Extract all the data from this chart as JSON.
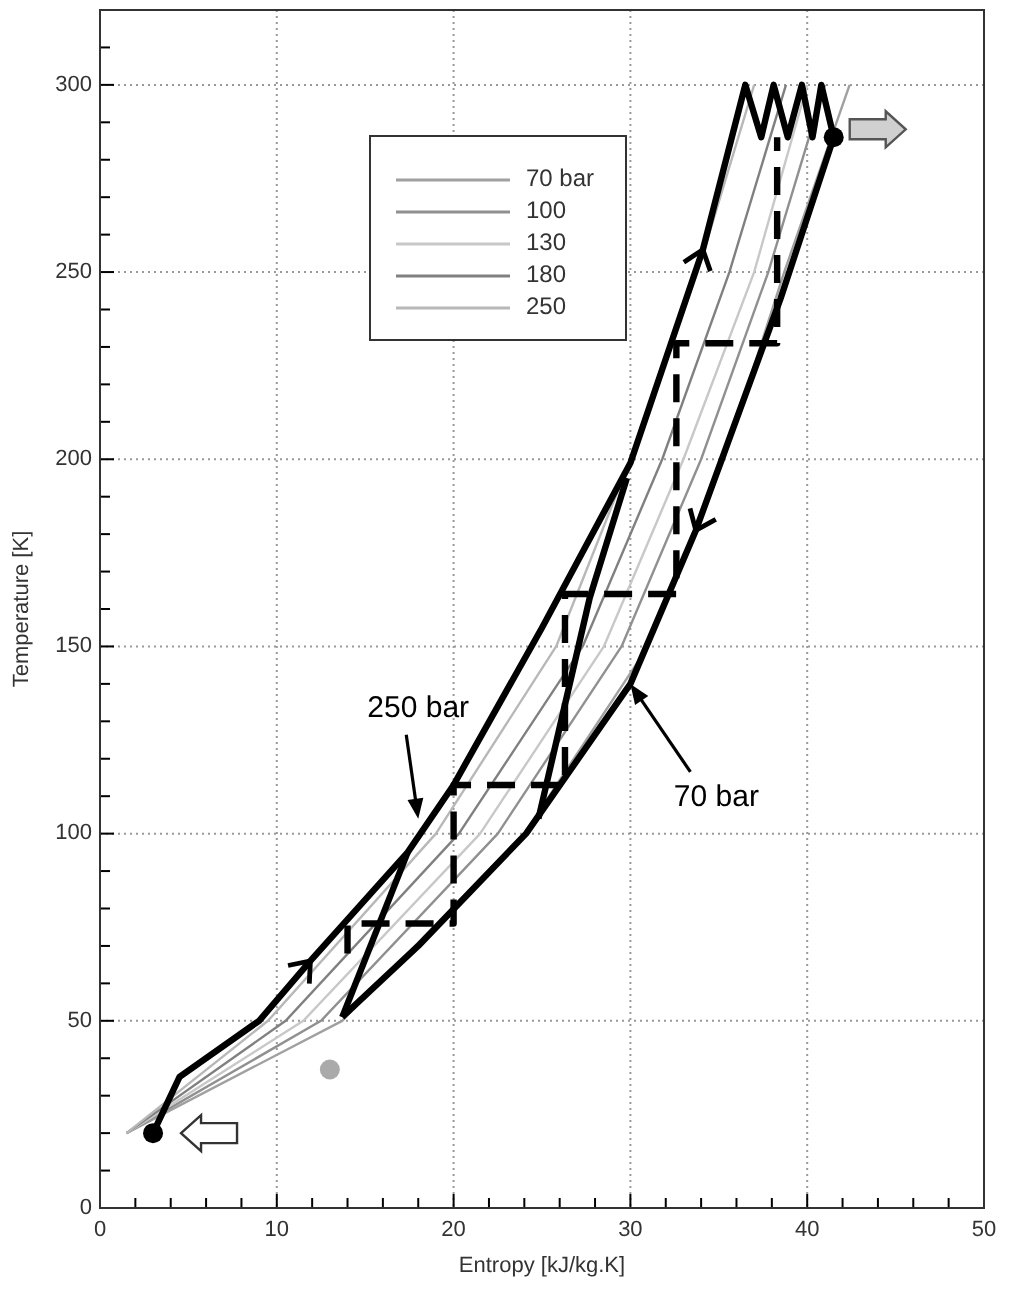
{
  "chart_data": {
    "type": "line",
    "xlabel": "Entropy [kJ/kg.K]",
    "ylabel": "Temperature [K]",
    "xlim": [
      0,
      50
    ],
    "ylim": [
      0,
      320
    ],
    "xticks": [
      0,
      {
        "value": 2,
        "label": null
      },
      {
        "value": 4,
        "label": null
      },
      {
        "value": 6,
        "label": null
      },
      {
        "value": 8,
        "label": null
      },
      10,
      {
        "value": 12,
        "label": null
      },
      {
        "value": 14,
        "label": null
      },
      {
        "value": 16,
        "label": null
      },
      {
        "value": 18,
        "label": null
      },
      20,
      {
        "value": 22,
        "label": null
      },
      {
        "value": 24,
        "label": null
      },
      {
        "value": 26,
        "label": null
      },
      {
        "value": 28,
        "label": null
      },
      30,
      {
        "value": 32,
        "label": null
      },
      {
        "value": 34,
        "label": null
      },
      {
        "value": 36,
        "label": null
      },
      {
        "value": 38,
        "label": null
      },
      40,
      {
        "value": 42,
        "label": null
      },
      {
        "value": 44,
        "label": null
      },
      {
        "value": 46,
        "label": null
      },
      {
        "value": 48,
        "label": null
      },
      50
    ],
    "yticks": [
      0,
      {
        "value": 10,
        "label": null
      },
      {
        "value": 20,
        "label": null
      },
      {
        "value": 30,
        "label": null
      },
      {
        "value": 40,
        "label": null
      },
      50,
      {
        "value": 60,
        "label": null
      },
      {
        "value": 70,
        "label": null
      },
      {
        "value": 80,
        "label": null
      },
      {
        "value": 90,
        "label": null
      },
      100,
      {
        "value": 110,
        "label": null
      },
      {
        "value": 120,
        "label": null
      },
      {
        "value": 130,
        "label": null
      },
      {
        "value": 140,
        "label": null
      },
      150,
      {
        "value": 160,
        "label": null
      },
      {
        "value": 170,
        "label": null
      },
      {
        "value": 180,
        "label": null
      },
      {
        "value": 190,
        "label": null
      },
      200,
      {
        "value": 210,
        "label": null
      },
      {
        "value": 220,
        "label": null
      },
      {
        "value": 230,
        "label": null
      },
      {
        "value": 240,
        "label": null
      },
      250,
      {
        "value": 260,
        "label": null
      },
      {
        "value": 270,
        "label": null
      },
      {
        "value": 280,
        "label": null
      },
      {
        "value": 290,
        "label": null
      },
      300,
      {
        "value": 310,
        "label": null
      },
      {
        "value": 320,
        "label": null
      }
    ],
    "grid": true,
    "legend": "top",
    "series": [
      {
        "name": "70 bar",
        "color": "#a0a0a0",
        "x": [
          1.5,
          13.7,
          24,
          31,
          35.3,
          38.7,
          42.4
        ],
        "values": [
          20,
          50,
          100,
          150,
          200,
          250,
          300
        ]
      },
      {
        "name": "100",
        "color": "#909090",
        "x": [
          1.5,
          12.5,
          22.5,
          29.5,
          34,
          37.8,
          41
        ],
        "values": [
          20,
          50,
          100,
          150,
          200,
          250,
          300
        ]
      },
      {
        "name": "130",
        "color": "#c8c8c8",
        "x": [
          1.5,
          11.5,
          21.5,
          28.5,
          33,
          37,
          40
        ],
        "values": [
          20,
          50,
          100,
          150,
          200,
          250,
          300
        ]
      },
      {
        "name": "180",
        "color": "#808080",
        "x": [
          1.5,
          10.5,
          20.3,
          27.3,
          31.8,
          35.6,
          38.8
        ],
        "values": [
          20,
          50,
          100,
          150,
          200,
          250,
          300
        ]
      },
      {
        "name": "250",
        "color": "#b8b8b8",
        "x": [
          1.5,
          9.5,
          19,
          25.8,
          30,
          33.8,
          37
        ],
        "values": [
          20,
          50,
          100,
          150,
          200,
          250,
          300
        ]
      },
      {
        "color": "#000000",
        "x": [
          3,
          4.5,
          9,
          11.9,
          17.4,
          20,
          25,
          30,
          34.1,
          36.5,
          37.4,
          38.1,
          38.9,
          39.7,
          40.3,
          40.8,
          41.5
        ],
        "values": [
          20,
          35,
          50,
          66,
          95,
          113,
          155,
          199,
          256,
          300,
          286,
          300,
          286,
          300,
          286,
          300,
          286
        ]
      },
      {
        "color": "#000000",
        "x": [
          13.7,
          18,
          24.1,
          30,
          33.7,
          38.5,
          41.5
        ],
        "values": [
          51,
          70,
          100,
          140,
          181,
          243,
          286
        ]
      },
      {
        "color": "#000000",
        "x": [
          13.7,
          17.4
        ],
        "values": [
          51,
          95
        ]
      },
      {
        "color": "#000000",
        "x": [
          24.8,
          27.7,
          29.8
        ],
        "values": [
          104,
          163,
          195
        ]
      },
      {
        "color": "#000000",
        "line_style": "dashed",
        "x": [
          14,
          14,
          20,
          20,
          26.3,
          26.3,
          32.6,
          32.6,
          38.3,
          38.3
        ],
        "values": [
          68,
          76,
          76,
          113,
          113,
          164,
          164,
          231,
          231,
          286
        ]
      },
      {
        "type": "scatter",
        "marker": "circle",
        "color": "#000000",
        "x": [
          3,
          41.5
        ],
        "values": [
          20,
          286
        ]
      },
      {
        "type": "scatter",
        "marker": "circle",
        "color": "#aaaaaa",
        "x": [
          13
        ],
        "values": [
          37
        ]
      }
    ],
    "annotations": [
      {
        "text": "250 bar",
        "x": 18,
        "y": 104
      },
      {
        "text": "70 bar",
        "x": 30,
        "y": 140
      }
    ]
  }
}
